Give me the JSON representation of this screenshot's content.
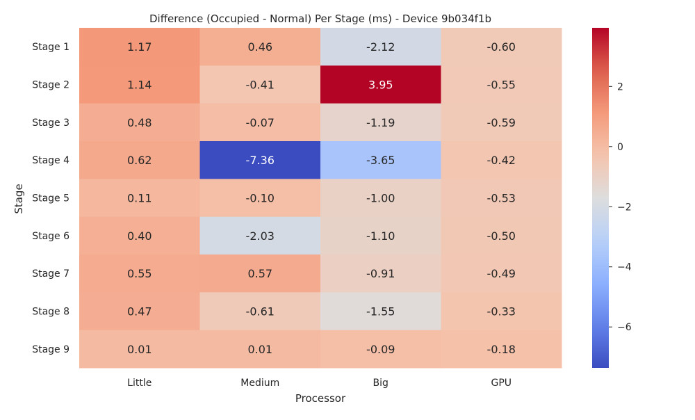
{
  "chart_data": {
    "type": "heatmap",
    "title": "Difference (Occupied - Normal) Per Stage (ms) - Device 9b034f1b",
    "xlabel": "Processor",
    "ylabel": "Stage",
    "x_categories": [
      "Little",
      "Medium",
      "Big",
      "GPU"
    ],
    "y_categories": [
      "Stage 1",
      "Stage 2",
      "Stage 3",
      "Stage 4",
      "Stage 5",
      "Stage 6",
      "Stage 7",
      "Stage 8",
      "Stage 9"
    ],
    "values": [
      [
        1.17,
        0.46,
        -2.12,
        -0.6
      ],
      [
        1.14,
        -0.41,
        3.95,
        -0.55
      ],
      [
        0.48,
        -0.07,
        -1.19,
        -0.59
      ],
      [
        0.62,
        -7.36,
        -3.65,
        -0.42
      ],
      [
        0.11,
        -0.1,
        -1.0,
        -0.53
      ],
      [
        0.4,
        -2.03,
        -1.1,
        -0.5
      ],
      [
        0.55,
        0.57,
        -0.91,
        -0.49
      ],
      [
        0.47,
        -0.61,
        -1.55,
        -0.33
      ],
      [
        0.01,
        0.01,
        -0.09,
        -0.18
      ]
    ],
    "value_labels": [
      [
        "1.17",
        "0.46",
        "-2.12",
        "-0.60"
      ],
      [
        "1.14",
        "-0.41",
        "3.95",
        "-0.55"
      ],
      [
        "0.48",
        "-0.07",
        "-1.19",
        "-0.59"
      ],
      [
        "0.62",
        "-7.36",
        "-3.65",
        "-0.42"
      ],
      [
        "0.11",
        "-0.10",
        "-1.00",
        "-0.53"
      ],
      [
        "0.40",
        "-2.03",
        "-1.10",
        "-0.50"
      ],
      [
        "0.55",
        "0.57",
        "-0.91",
        "-0.49"
      ],
      [
        "0.47",
        "-0.61",
        "-1.55",
        "-0.33"
      ],
      [
        "0.01",
        "0.01",
        "-0.09",
        "-0.18"
      ]
    ],
    "colormap": "coolwarm",
    "color_range": [
      -7.36,
      3.95
    ],
    "colorbar_ticks": [
      2,
      0,
      -2,
      -4,
      -6
    ],
    "colorbar_tick_labels": [
      "2",
      "0",
      "−2",
      "−4",
      "−6"
    ]
  }
}
